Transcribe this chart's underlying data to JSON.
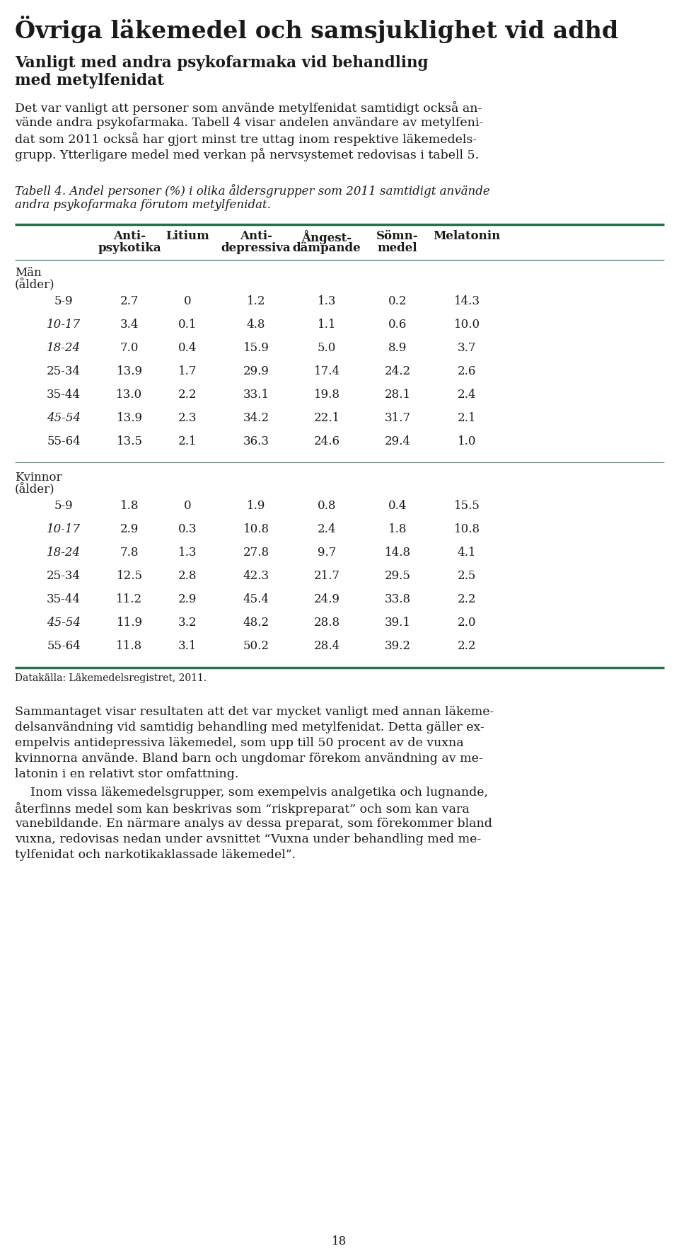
{
  "title": "Övriga läkemedel och samsjuklighet vid adhd",
  "subtitle": "Vanligt med andra psykofarmaka vid behandling\nmed metylfenidat",
  "body_text1": "Det var vanligt att personer som använde metylfenidat samtidigt också använde andra psykofarmaka. Tabell 4 visar andelen användare av metylfenidat som 2011 också har gjort minst tre uttag inom respektive läkemedelsgrupp. Ytterligare medel med verkan på nervsystemet redovisas i tabell 5.",
  "table_caption_line1": "Tabell 4. Andel personer (%) i olika åldersgrupper som 2011 samtidigt använde",
  "table_caption_line2": "andra psykofarmaka förutom metylfenidat.",
  "col_headers_line1": [
    "Anti-",
    "Litium",
    "Anti-",
    "Ångest-",
    "Sömn-",
    "Melatonin"
  ],
  "col_headers_line2": [
    "psykotika",
    "",
    "depressiva",
    "dämpande",
    "medel",
    ""
  ],
  "man_label": "Män",
  "man_label2": "(ålder)",
  "man_rows": [
    [
      "5-9",
      "2.7",
      "0",
      "1.2",
      "1.3",
      "0.2",
      "14.3"
    ],
    [
      "10-17",
      "3.4",
      "0.1",
      "4.8",
      "1.1",
      "0.6",
      "10.0"
    ],
    [
      "18-24",
      "7.0",
      "0.4",
      "15.9",
      "5.0",
      "8.9",
      "3.7"
    ],
    [
      "25-34",
      "13.9",
      "1.7",
      "29.9",
      "17.4",
      "24.2",
      "2.6"
    ],
    [
      "35-44",
      "13.0",
      "2.2",
      "33.1",
      "19.8",
      "28.1",
      "2.4"
    ],
    [
      "45-54",
      "13.9",
      "2.3",
      "34.2",
      "22.1",
      "31.7",
      "2.1"
    ],
    [
      "55-64",
      "13.5",
      "2.1",
      "36.3",
      "24.6",
      "29.4",
      "1.0"
    ]
  ],
  "kvinna_label": "Kvinnor",
  "kvinna_label2": "(ålder)",
  "kvinna_rows": [
    [
      "5-9",
      "1.8",
      "0",
      "1.9",
      "0.8",
      "0.4",
      "15.5"
    ],
    [
      "10-17",
      "2.9",
      "0.3",
      "10.8",
      "2.4",
      "1.8",
      "10.8"
    ],
    [
      "18-24",
      "7.8",
      "1.3",
      "27.8",
      "9.7",
      "14.8",
      "4.1"
    ],
    [
      "25-34",
      "12.5",
      "2.8",
      "42.3",
      "21.7",
      "29.5",
      "2.5"
    ],
    [
      "35-44",
      "11.2",
      "2.9",
      "45.4",
      "24.9",
      "33.8",
      "2.2"
    ],
    [
      "45-54",
      "11.9",
      "3.2",
      "48.2",
      "28.8",
      "39.1",
      "2.0"
    ],
    [
      "55-64",
      "11.8",
      "3.1",
      "50.2",
      "28.4",
      "39.2",
      "2.2"
    ]
  ],
  "datasource": "Datakälla: Läkemedelsregistret, 2011.",
  "body_text2_p1": "Sammantaget visar resultaten att det var mycket vanligt med annan läkemedelsanvändning vid samtidig behandling med metylfenidat. Detta gäller exempelvis antidepressiva läkemedel, som upp till 50 procent av de vuxna kvinnorna använde. Bland barn och ungdomar förekom användning av melatonin i en relativt stor omfattning.",
  "body_text2_p2": "    Inom vissa läkemedelsgrupper, som exempelvis analgetika och lugnande, återfinns medel som kan beskrivas som “riskpreparat” och som kan vara vanebildande. En närmare analys av dessa preparat, som förekommer bland vuxna, redovisas nedan under avsnittet “Vuxna under behandling med metylfenidat och narkotikaklassade läkemedel”.",
  "page_number": "18",
  "line_color": "#2d6e4e",
  "bg_color": "#ffffff",
  "text_color": "#1a1a1a",
  "italic_ages_man": [
    "10-17",
    "18-24",
    "45-54"
  ],
  "italic_ages_kvinna": [
    "10-17",
    "18-24",
    "45-54"
  ]
}
